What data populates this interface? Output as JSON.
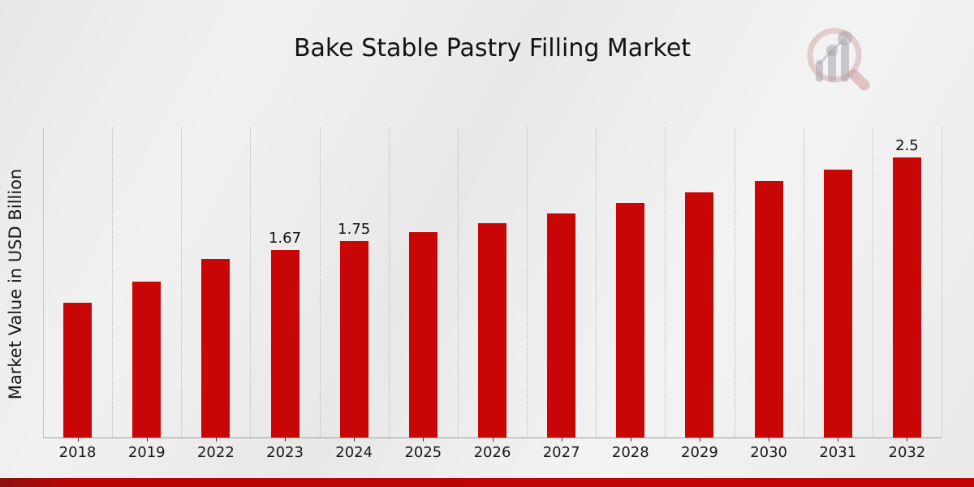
{
  "chart_data": {
    "type": "bar",
    "title": "Bake Stable Pastry Filling Market",
    "xlabel": "",
    "ylabel": "Market Value in USD Billion",
    "categories": [
      "2018",
      "2019",
      "2022",
      "2023",
      "2024",
      "2025",
      "2026",
      "2027",
      "2028",
      "2029",
      "2030",
      "2031",
      "2032"
    ],
    "values": [
      1.2,
      1.39,
      1.59,
      1.67,
      1.75,
      1.83,
      1.91,
      2.0,
      2.09,
      2.19,
      2.29,
      2.39,
      2.5
    ],
    "data_labels": {
      "2023": "1.67",
      "2024": "1.75",
      "2032": "2.5"
    },
    "ylim": [
      0,
      2.78
    ],
    "grid": "vertical dotted lines between categories",
    "legend": "none",
    "bar_color": "#c80606",
    "label_color": "#101010"
  },
  "branding": {
    "watermark_icon": "magnifying-glass-bar-chart-logo",
    "footer_band_color": "#b90505"
  }
}
